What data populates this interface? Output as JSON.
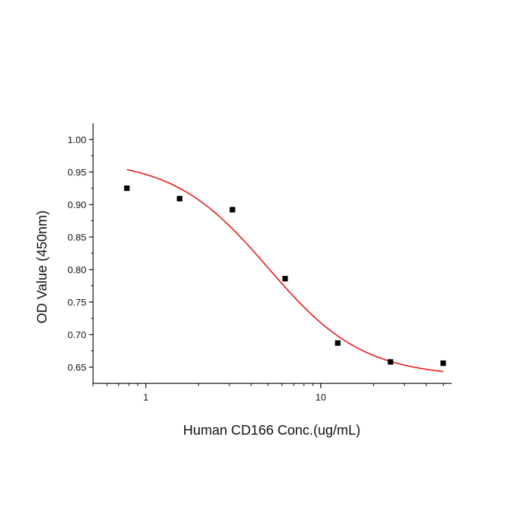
{
  "chart_data": {
    "type": "scatter",
    "xlabel": "Human CD166 Conc.(ug/mL)",
    "ylabel": "OD Value (450nm)",
    "x_scale": "log",
    "x_range": [
      0.5,
      56
    ],
    "y_range": [
      0.625,
      1.025
    ],
    "x_tick_labels": [
      "1",
      "10"
    ],
    "y_tick_labels": [
      "0.65",
      "0.70",
      "0.75",
      "0.80",
      "0.85",
      "0.90",
      "0.95",
      "1.00"
    ],
    "grid": false,
    "points": [
      {
        "x": 0.78,
        "y": 0.925
      },
      {
        "x": 1.56,
        "y": 0.909
      },
      {
        "x": 3.125,
        "y": 0.892
      },
      {
        "x": 6.25,
        "y": 0.786
      },
      {
        "x": 12.5,
        "y": 0.687
      },
      {
        "x": 25,
        "y": 0.658
      },
      {
        "x": 50,
        "y": 0.656
      }
    ],
    "fit_curve": {
      "model": "4PL",
      "top": 0.97,
      "bottom": 0.635,
      "ec50": 5.0,
      "hill": 1.6,
      "x_start": 0.78,
      "x_end": 50
    },
    "colors": {
      "points": "#000000",
      "fit_curve": "#e8201f",
      "axes": "#000000"
    }
  }
}
